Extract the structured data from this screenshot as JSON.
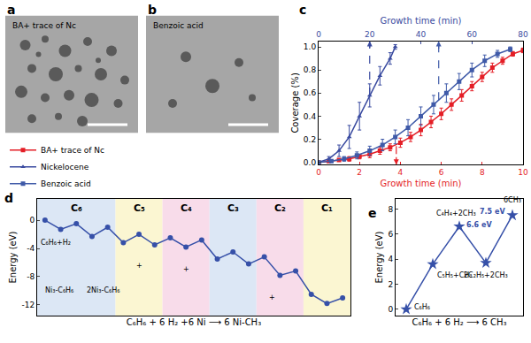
{
  "images": [
    {
      "panel": "a",
      "caption": "BA+ trace of Nc"
    },
    {
      "panel": "b",
      "caption": "Benzoic acid"
    }
  ],
  "chart_data": [
    {
      "panel": "c",
      "type": "line",
      "xlabel": "Growth time (min)",
      "x2label": "Growth time (min)",
      "ylabel": "Coverage (%)",
      "xlim": [
        0,
        10
      ],
      "xticks": [
        0,
        2,
        4,
        6,
        8,
        10
      ],
      "x2lim": [
        0,
        80
      ],
      "x2ticks": [
        0,
        20,
        40,
        60,
        80
      ],
      "ylim": [
        -0.02,
        1.05
      ],
      "yticks": [
        {
          "value": 0,
          "label": "0.0"
        },
        0.2,
        0.4,
        0.6,
        0.8,
        {
          "value": 1,
          "label": "1.0"
        }
      ],
      "legend": "outside",
      "series": [
        {
          "name": "BA+ trace of Nc",
          "color": "#e41e26",
          "marker": "square",
          "axis": "x",
          "x": [
            0,
            0.5,
            1,
            1.5,
            2,
            2.5,
            3,
            3.5,
            4,
            4.5,
            5,
            5.5,
            6,
            6.5,
            7,
            7.5,
            8,
            8.5,
            9,
            9.5,
            10
          ],
          "values": [
            0,
            0.01,
            0.02,
            0.03,
            0.05,
            0.07,
            0.1,
            0.13,
            0.17,
            0.22,
            0.28,
            0.35,
            0.42,
            0.5,
            0.58,
            0.66,
            0.74,
            0.82,
            0.88,
            0.94,
            0.97
          ],
          "errors": [
            0,
            0.01,
            0.01,
            0.02,
            0.02,
            0.03,
            0.03,
            0.03,
            0.04,
            0.04,
            0.05,
            0.05,
            0.05,
            0.05,
            0.05,
            0.04,
            0.04,
            0.04,
            0.03,
            0.02,
            0.02
          ]
        },
        {
          "name": "Nickelocene",
          "color": "#3a4ba0",
          "marker": "triangle-up",
          "axis": "x2",
          "x": [
            0,
            4,
            8,
            12,
            16,
            20,
            24,
            28,
            30
          ],
          "values": [
            0,
            0.03,
            0.1,
            0.22,
            0.4,
            0.58,
            0.75,
            0.9,
            1.0
          ],
          "errors": [
            0,
            0.02,
            0.05,
            0.1,
            0.12,
            0.1,
            0.08,
            0.05,
            0.02
          ]
        },
        {
          "name": "Benzoic acid",
          "color": "#3f5aa8",
          "marker": "square",
          "axis": "x2",
          "x": [
            0,
            5,
            10,
            15,
            20,
            25,
            30,
            35,
            40,
            45,
            50,
            55,
            60,
            65,
            70,
            75
          ],
          "values": [
            0,
            0.01,
            0.03,
            0.06,
            0.1,
            0.15,
            0.22,
            0.3,
            0.4,
            0.5,
            0.6,
            0.7,
            0.8,
            0.88,
            0.94,
            0.98
          ],
          "errors": [
            0,
            0.01,
            0.02,
            0.03,
            0.04,
            0.05,
            0.06,
            0.07,
            0.08,
            0.08,
            0.08,
            0.07,
            0.06,
            0.05,
            0.03,
            0.02
          ]
        }
      ],
      "guides": [
        {
          "axis": "x2",
          "x": 20,
          "y": 0.58,
          "color": "#3a4ba0"
        },
        {
          "axis": "x2",
          "x": 47,
          "y": 0.54,
          "color": "#3f5aa8"
        },
        {
          "axis": "x",
          "x": 3.8,
          "y": 0.14,
          "color": "#e41e26"
        }
      ]
    },
    {
      "panel": "d",
      "type": "line",
      "ylabel": "Energy (eV)",
      "xlabel": "C₆H₆ + 6 H₂ +6 Ni ⟶ 6 Ni-CH₃",
      "xlim": [
        -0.5,
        19.5
      ],
      "ylim": [
        -13.5,
        3
      ],
      "yticks": [
        -12,
        -8,
        -4,
        0
      ],
      "tick_labels": "y",
      "color": "#3650a8",
      "marker": "circle",
      "x": [
        0,
        1,
        2,
        3,
        4,
        5,
        6,
        7,
        8,
        9,
        10,
        11,
        12,
        13,
        14,
        15,
        16,
        17,
        18,
        19
      ],
      "values": [
        0,
        -1.3,
        -0.5,
        -2.3,
        -1.0,
        -3.2,
        -2.0,
        -3.5,
        -2.5,
        -3.8,
        -2.8,
        -5.5,
        -4.5,
        -6.2,
        -5.2,
        -7.8,
        -7.2,
        -10.5,
        -11.8,
        -11.0
      ],
      "regions": [
        {
          "label": "C₆",
          "start": -0.5,
          "end": 4.5,
          "color": "#dce7f5"
        },
        {
          "label": "C₅",
          "start": 4.5,
          "end": 7.5,
          "color": "#fbf6d2"
        },
        {
          "label": "C₄",
          "start": 7.5,
          "end": 10.5,
          "color": "#f8dcea"
        },
        {
          "label": "C₃",
          "start": 10.5,
          "end": 13.5,
          "color": "#dce7f5"
        },
        {
          "label": "C₂",
          "start": 13.5,
          "end": 16.5,
          "color": "#f8dcea"
        },
        {
          "label": "C₁",
          "start": 16.5,
          "end": 19.5,
          "color": "#fbf6d2"
        }
      ],
      "annotations": [
        "C₆H₆+H₂",
        "Ni₃-C₆H₆",
        "2Ni₃-C₆H₆",
        "+",
        "+",
        "+"
      ]
    },
    {
      "panel": "e",
      "type": "line",
      "ylabel": "Energy (eV)",
      "xlabel": "C₆H₆ + 6 H₂ ⟶ 6 CH₃",
      "xlim": [
        -0.4,
        4.4
      ],
      "ylim": [
        -0.5,
        8.8
      ],
      "yticks": [
        0,
        2,
        4,
        6,
        8
      ],
      "tick_labels": "y",
      "color": "#3650a8",
      "marker": "star",
      "x": [
        0,
        1,
        2,
        3,
        4
      ],
      "values": [
        0,
        3.6,
        6.6,
        3.7,
        7.5
      ],
      "point_labels": [
        "C₆H₆",
        "C₅H₅+CH₃",
        "C₄H₄+2CH₃",
        "2C₂H₅+2CH₃",
        "6CH₃"
      ],
      "value_labels": [
        null,
        null,
        "6.6 eV",
        null,
        "7.5 eV"
      ]
    }
  ]
}
